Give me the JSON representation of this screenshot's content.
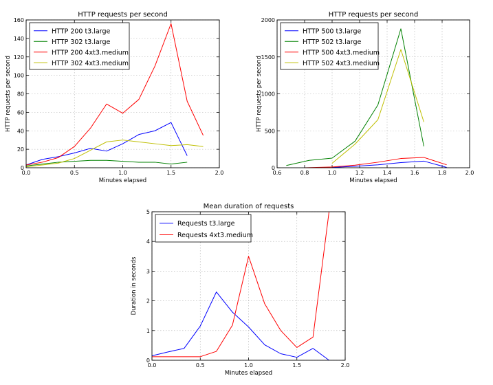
{
  "colors": {
    "blue": "#0000ff",
    "green": "#008000",
    "red": "#ff0000",
    "yellow": "#bfbf00"
  },
  "chart_data": [
    {
      "type": "line",
      "title": "HTTP requests per second",
      "xlabel": "Minutes elapsed",
      "ylabel": "HTTP requests per second",
      "xlim": [
        0,
        2.0
      ],
      "ylim": [
        0,
        160
      ],
      "xticks": [
        "0.0",
        "0.5",
        "1.0",
        "1.5",
        "2.0"
      ],
      "yticks": [
        "0",
        "20",
        "40",
        "60",
        "80",
        "100",
        "120",
        "140",
        "160"
      ],
      "grid": true,
      "legend_position": "upper-left",
      "series": [
        {
          "name": "HTTP 200 t3.large",
          "color": "#0000ff",
          "x": [
            0,
            0.167,
            0.333,
            0.5,
            0.667,
            0.833,
            1.0,
            1.167,
            1.333,
            1.5,
            1.667
          ],
          "y": [
            3,
            9,
            12,
            16,
            21,
            18,
            26,
            36,
            40,
            49,
            13
          ]
        },
        {
          "name": "HTTP 302 t3.large",
          "color": "#008000",
          "x": [
            0,
            0.167,
            0.333,
            0.5,
            0.667,
            0.833,
            1.0,
            1.167,
            1.333,
            1.5,
            1.667
          ],
          "y": [
            2,
            4,
            6,
            7,
            8,
            8,
            7,
            6,
            6,
            4,
            6
          ]
        },
        {
          "name": "HTTP 200 4xt3.medium",
          "color": "#ff0000",
          "x": [
            0,
            0.167,
            0.333,
            0.5,
            0.667,
            0.833,
            1.0,
            1.167,
            1.333,
            1.5,
            1.667,
            1.833
          ],
          "y": [
            3,
            6,
            11,
            23,
            43,
            69,
            59,
            74,
            110,
            156,
            72,
            35
          ]
        },
        {
          "name": "HTTP 302 4xt3.medium",
          "color": "#bfbf00",
          "x": [
            0,
            0.167,
            0.333,
            0.5,
            0.667,
            0.833,
            1.0,
            1.167,
            1.333,
            1.5,
            1.667,
            1.833
          ],
          "y": [
            1,
            3,
            5,
            10,
            19,
            28,
            30,
            28,
            26,
            24,
            25,
            23
          ]
        }
      ]
    },
    {
      "type": "line",
      "title": "HTTP requests per second",
      "xlabel": "Minutes elapsed",
      "ylabel": "HTTP requests per second",
      "xlim": [
        0.6,
        2.0
      ],
      "ylim": [
        0,
        2000
      ],
      "xticks": [
        "0.6",
        "0.8",
        "1.0",
        "1.2",
        "1.4",
        "1.6",
        "1.8",
        "2.0"
      ],
      "yticks": [
        "0",
        "500",
        "1000",
        "1500",
        "2000"
      ],
      "grid": true,
      "legend_position": "upper-left",
      "series": [
        {
          "name": "HTTP 500 t3.large",
          "color": "#0000ff",
          "x": [
            1.0,
            1.167,
            1.333,
            1.5,
            1.667,
            1.833
          ],
          "y": [
            5,
            20,
            40,
            70,
            90,
            5
          ]
        },
        {
          "name": "HTTP 502 t3.large",
          "color": "#008000",
          "x": [
            0.667,
            0.833,
            1.0,
            1.167,
            1.333,
            1.5,
            1.667
          ],
          "y": [
            30,
            100,
            130,
            360,
            850,
            1880,
            290
          ]
        },
        {
          "name": "HTTP 500 4xt3.medium",
          "color": "#ff0000",
          "x": [
            0.8,
            1.0,
            1.167,
            1.333,
            1.5,
            1.667,
            1.833
          ],
          "y": [
            0,
            10,
            35,
            75,
            125,
            140,
            40
          ]
        },
        {
          "name": "HTTP 502 4xt3.medium",
          "color": "#bfbf00",
          "x": [
            1.0,
            1.167,
            1.333,
            1.5,
            1.667
          ],
          "y": [
            60,
            320,
            650,
            1600,
            620
          ]
        }
      ]
    },
    {
      "type": "line",
      "title": "Mean duration of requests",
      "xlabel": "Minutes elapsed",
      "ylabel": "Duration in seconds",
      "xlim": [
        0,
        2.0
      ],
      "ylim": [
        0,
        5
      ],
      "xticks": [
        "0.0",
        "0.5",
        "1.0",
        "1.5",
        "2.0"
      ],
      "yticks": [
        "0",
        "1",
        "2",
        "3",
        "4",
        "5"
      ],
      "grid": true,
      "legend_position": "upper-left",
      "series": [
        {
          "name": "Requests t3.large",
          "color": "#0000ff",
          "x": [
            0,
            0.167,
            0.333,
            0.5,
            0.667,
            0.833,
            1.0,
            1.167,
            1.333,
            1.5,
            1.667,
            1.833
          ],
          "y": [
            0.15,
            0.28,
            0.4,
            1.15,
            2.3,
            1.62,
            1.12,
            0.52,
            0.22,
            0.1,
            0.4,
            0.0
          ]
        },
        {
          "name": "Requests 4xt3.medium",
          "color": "#ff0000",
          "x": [
            0,
            0.167,
            0.333,
            0.5,
            0.667,
            0.833,
            1.0,
            1.167,
            1.333,
            1.5,
            1.667,
            1.833
          ],
          "y": [
            0.12,
            0.12,
            0.12,
            0.12,
            0.3,
            1.18,
            3.5,
            1.9,
            1.0,
            0.43,
            0.78,
            5.0
          ]
        }
      ]
    }
  ]
}
